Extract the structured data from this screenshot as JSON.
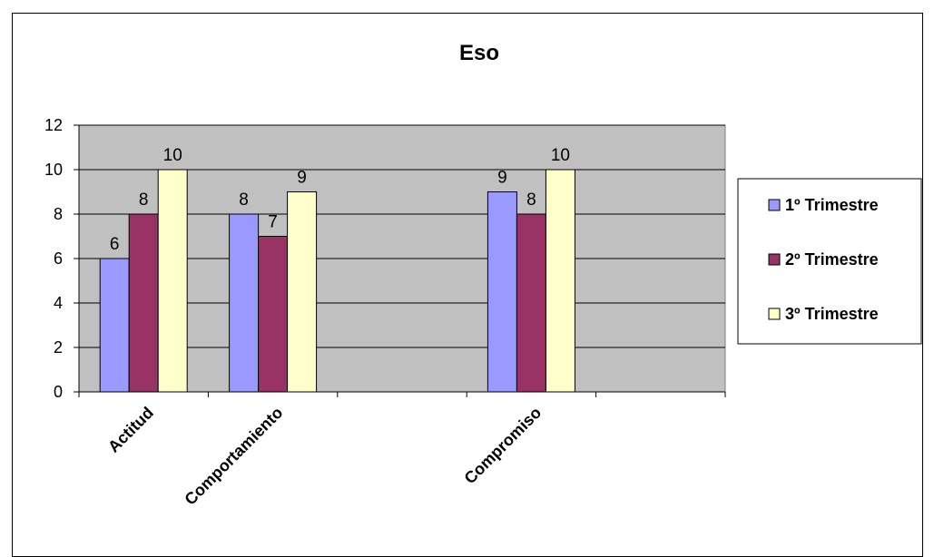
{
  "chart_data": {
    "type": "bar",
    "title": "Eso",
    "categories": [
      "Actitud",
      "Comportamiento",
      "",
      "Compromiso",
      ""
    ],
    "series": [
      {
        "name": "1º Trimestre",
        "values": [
          6,
          8,
          null,
          9,
          null
        ],
        "color": "#9999ff"
      },
      {
        "name": "2º Trimestre",
        "values": [
          8,
          7,
          null,
          8,
          null
        ],
        "color": "#993366"
      },
      {
        "name": "3º Trimestre",
        "values": [
          10,
          9,
          null,
          10,
          null
        ],
        "color": "#ffffcc"
      }
    ],
    "ylim": [
      0,
      12
    ],
    "yticks": [
      0,
      2,
      4,
      6,
      8,
      10,
      12
    ],
    "grid": true,
    "plot_background": "#c0c0c0",
    "legend_position": "right",
    "data_labels": true
  }
}
